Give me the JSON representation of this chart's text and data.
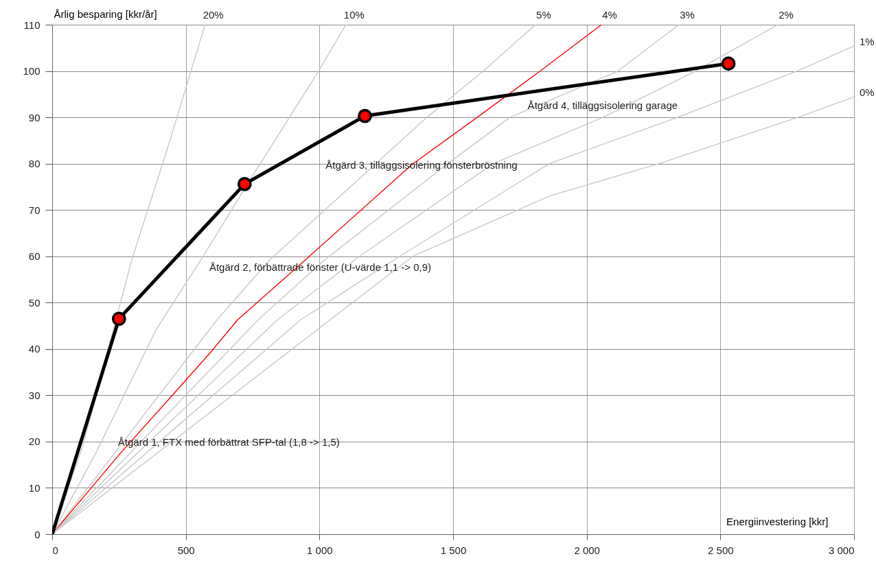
{
  "chart_data": {
    "type": "line",
    "xlabel": "Energiinvestering [kkr]",
    "ylabel": "Årlig besparing [kkr/år]",
    "xlim": [
      0,
      3000
    ],
    "ylim": [
      0,
      110
    ],
    "xticks": [
      0,
      500,
      {
        "value": 1000,
        "label": "1 000"
      },
      {
        "value": 1500,
        "label": "1 500"
      },
      {
        "value": 2000,
        "label": "2 000"
      },
      {
        "value": 2500,
        "label": "2 500"
      },
      {
        "value": 3000,
        "label": "3 000"
      }
    ],
    "yticks": [
      0,
      10,
      20,
      30,
      40,
      50,
      60,
      70,
      80,
      90,
      100,
      110
    ],
    "grid": true,
    "series": [
      {
        "name": "20%",
        "color": "#c8c8c8",
        "x": [
          0,
          113,
          298,
          432,
          572
        ],
        "values": [
          0,
          18.8,
          59.3,
          83.4,
          110
        ]
      },
      {
        "name": "10%",
        "color": "#c8c8c8",
        "x": [
          0,
          164,
          390,
          555,
          750,
          997,
          1099
        ],
        "values": [
          0,
          17.6,
          44.3,
          59.1,
          77.4,
          100,
          110
        ]
      },
      {
        "name": "5%",
        "color": "#c8c8c8",
        "x": [
          0,
          617,
          812,
          1402,
          1613,
          1808
        ],
        "values": [
          0,
          46.3,
          59.1,
          90,
          100,
          110
        ]
      },
      {
        "name": "4%",
        "color": "#ff0000",
        "x": [
          0,
          257,
          442,
          596,
          694,
          945,
          1346,
          1590,
          1826,
          2055
        ],
        "values": [
          0,
          17.6,
          29.5,
          39.5,
          46.3,
          59.1,
          79.8,
          90,
          100,
          110
        ]
      },
      {
        "name": "3%",
        "color": "#c8c8c8",
        "x": [
          0,
          771,
          1017,
          1480,
          1713,
          2117,
          2345
        ],
        "values": [
          0,
          46.3,
          59.1,
          80,
          90,
          100,
          110
        ]
      },
      {
        "name": "2%",
        "color": "#c8c8c8",
        "x": [
          0,
          843,
          1150,
          1650,
          2060,
          2407,
          2715
        ],
        "values": [
          0,
          46.3,
          60,
          80,
          90,
          100,
          110
        ]
      },
      {
        "name": "1%",
        "color": "#c8c8c8",
        "x": [
          0,
          930,
          1300,
          1860,
          2340,
          2787,
          3000
        ],
        "values": [
          0,
          46.3,
          60,
          80,
          90,
          100,
          105.4
        ]
      },
      {
        "name": "0%",
        "color": "#c8c8c8",
        "x": [
          0,
          1040,
          1350,
          1860,
          2270,
          2790,
          3000
        ],
        "values": [
          0,
          46.3,
          60,
          73,
          80,
          90,
          94.4
        ]
      },
      {
        "color": "#000000",
        "x": [
          0,
          250,
          720,
          1170,
          2530
        ],
        "values": [
          0,
          46.5,
          75.6,
          90.3,
          101.6
        ]
      },
      {
        "type": "scatter",
        "marker": "circle",
        "color": "#ff0000",
        "x": [
          250,
          720,
          1170,
          2530
        ],
        "values": [
          46.5,
          75.6,
          90.3,
          101.6
        ]
      }
    ],
    "annotations": [
      "Åtgärd 1, FTX med förbättrat SFP-tal (1,8 -> 1,5)",
      "Åtgärd 2, förbättrade fönster (U-värde 1,1 -> 0,9)",
      "Åtgärd 3, tilläggsisolering fönsterbröstning",
      "Åtgärd 4, tilläggsisolering garage"
    ]
  }
}
